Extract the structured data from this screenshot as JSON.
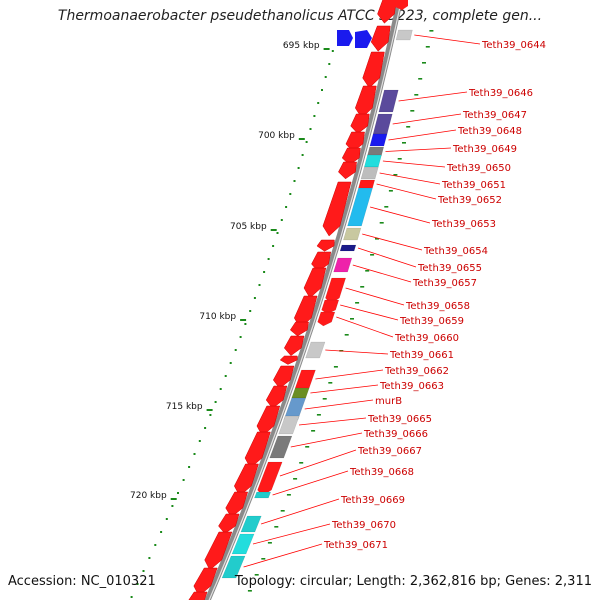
{
  "title": "Thermoanaerobacter pseudethanolicus ATCC 33223, complete gen...",
  "footer": {
    "accession": "Accession: NC_010321",
    "summary": "Topology: circular; Length: 2,362,816 bp; Genes: 2,311"
  },
  "colors": {
    "backbone": "#8a8a8a",
    "tick": "#1a8a1a",
    "label_line": "#ff0000",
    "gene_label": "#cc0000"
  },
  "kbp_markers": [
    "695 kbp",
    "700 kbp",
    "705 kbp",
    "710 kbp",
    "715 kbp",
    "720 kbp"
  ],
  "genes": [
    {
      "label": "Teth39_0644",
      "color": "#c8c8c8"
    },
    {
      "label": "Teth39_0646",
      "color": "#5a4a9c"
    },
    {
      "label": "Teth39_0647",
      "color": "#5a4a9c"
    },
    {
      "label": "Teth39_0648",
      "color": "#1a1aee"
    },
    {
      "label": "Teth39_0649",
      "color": "#7a7a7a"
    },
    {
      "label": "Teth39_0650",
      "color": "#22dddd"
    },
    {
      "label": "Teth39_0651",
      "color": "#bdbdbd"
    },
    {
      "label": "Teth39_0652",
      "color": "#ff1a1a"
    },
    {
      "label": "Teth39_0653",
      "color": "#22bbee"
    },
    {
      "label": "Teth39_0654",
      "color": "#c8c8a0"
    },
    {
      "label": "Teth39_0655",
      "color": "#1a1a8a"
    },
    {
      "label": "Teth39_0657",
      "color": "#ee22aa"
    },
    {
      "label": "Teth39_0658",
      "color": "#ff1a1a"
    },
    {
      "label": "Teth39_0659",
      "color": "#ff1a1a"
    },
    {
      "label": "Teth39_0660",
      "color": "#ff1a1a"
    },
    {
      "label": "Teth39_0661",
      "color": "#c8c8c8"
    },
    {
      "label": "Teth39_0662",
      "color": "#ff1a1a"
    },
    {
      "label": "Teth39_0663",
      "color": "#6b8e23"
    },
    {
      "label": "murB",
      "color": "#6699cc"
    },
    {
      "label": "Teth39_0665",
      "color": "#c8c8c8"
    },
    {
      "label": "Teth39_0666",
      "color": "#7a7a7a"
    },
    {
      "label": "Teth39_0667",
      "color": "#ff1a1a"
    },
    {
      "label": "Teth39_0668",
      "color": "#22cccc"
    },
    {
      "label": "Teth39_0669",
      "color": "#22cccc"
    },
    {
      "label": "Teth39_0670",
      "color": "#22dddd"
    },
    {
      "label": "Teth39_0671",
      "color": "#22cccc"
    }
  ]
}
